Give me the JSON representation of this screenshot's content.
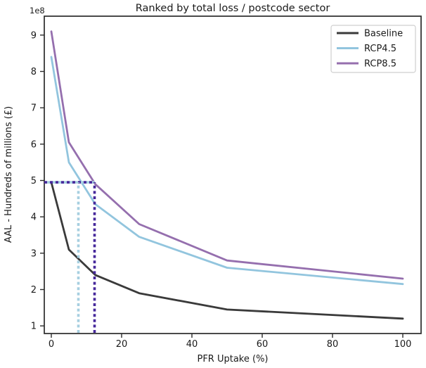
{
  "figure": {
    "title": "Ranked by total loss / postcode sector",
    "y_offset_text": "1e8"
  },
  "chart_data": {
    "type": "line",
    "title": "Ranked by total loss / postcode sector",
    "xlabel": "PFR Uptake (%)",
    "ylabel": "AAL - Hundreds of millions (£)",
    "y_offset_text": "1e8",
    "x": [
      0,
      5,
      12.5,
      25,
      50,
      100
    ],
    "series": [
      {
        "name": "Baseline",
        "color": "#3a3a3a",
        "values": [
          4.95,
          3.1,
          2.4,
          1.9,
          1.45,
          1.2
        ]
      },
      {
        "name": "RCP4.5",
        "color": "#92c5de",
        "values": [
          8.4,
          5.5,
          4.35,
          3.45,
          2.6,
          2.15
        ]
      },
      {
        "name": "RCP8.5",
        "color": "#956fae",
        "values": [
          9.1,
          6.05,
          4.9,
          3.8,
          2.8,
          2.3
        ]
      }
    ],
    "xticks": [
      0,
      20,
      40,
      60,
      80,
      100
    ],
    "yticks": [
      1,
      2,
      3,
      4,
      5,
      6,
      7,
      8,
      9
    ],
    "xlim": [
      -2,
      105.2
    ],
    "ylim": [
      0.79,
      9.52
    ],
    "grid": false,
    "legend_position": "upper right",
    "annotations": {
      "hline": {
        "y": 4.95,
        "x_start_at_axis": true,
        "x_end": 12.3,
        "dash_colors": [
          "#a6cfe0",
          "#46289b"
        ],
        "style": "dotted"
      },
      "vlines": [
        {
          "x": 7.7,
          "y_top": 4.95,
          "color": "#a6cfe0",
          "style": "dotted"
        },
        {
          "x": 12.3,
          "y_top": 4.95,
          "color": "#46289b",
          "style": "dotted"
        }
      ]
    },
    "colors": {
      "baseline": "#3a3a3a",
      "rcp45": "#92c5de",
      "rcp85": "#956fae",
      "dotted_blue": "#a6cfe0",
      "dotted_indigo": "#46289b",
      "spine": "#2b2b2b",
      "legend_border": "#cfcfcf"
    }
  }
}
